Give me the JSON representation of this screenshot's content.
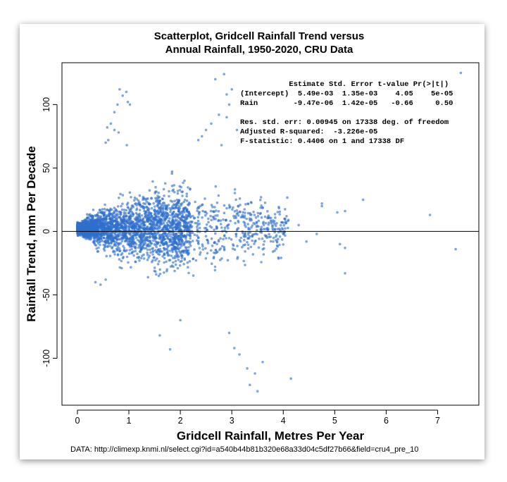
{
  "chart_data": {
    "type": "scatter",
    "title_lines": [
      "Scatterplot, Gridcell Rainfall Trend versus",
      "Annual Rainfall, 1950-2020, CRU Data"
    ],
    "xlabel": "Gridcell Rainfall, Metres Per Year",
    "ylabel": "Rainfall Trend, mm Per Decade",
    "xlim": [
      -0.3,
      7.8
    ],
    "ylim": [
      -137,
      133
    ],
    "x_ticks": [
      0,
      1,
      2,
      3,
      4,
      5,
      6,
      7
    ],
    "y_ticks": [
      -100,
      -50,
      0,
      50,
      100
    ],
    "reference_line_y": 0,
    "point_color": "#2f6fcc",
    "point_count": 17340,
    "grid": false,
    "stats_lines": [
      "           Estimate Std. Error t-value Pr(>|t|)",
      "(Intercept)  5.49e-03  1.35e-03    4.05    5e-05",
      "Rain        -9.47e-06  1.42e-05   -0.66     0.50",
      "",
      "Res. std. err: 0.00945 on 17338 deg. of freedom",
      "Adjusted R-squared:  -3.226e-05",
      "F-statistic: 0.4406 on 1 and 17338 DF"
    ],
    "source": "DATA: http://climexp.knmi.nl/select.cgi?id=a540b44b81b320e68a33d04c5df27b66&field=cru4_pre_10",
    "envelope": {
      "x": [
        0.05,
        0.3,
        0.6,
        0.9,
        1.2,
        1.6,
        2.0,
        2.5,
        3.0,
        3.5,
        4.0
      ],
      "spread": [
        5,
        14,
        22,
        28,
        32,
        36,
        38,
        37,
        34,
        30,
        25
      ]
    },
    "outliers": [
      {
        "x": 7.45,
        "y": 125
      },
      {
        "x": 7.35,
        "y": -14
      },
      {
        "x": 6.85,
        "y": 13
      },
      {
        "x": 5.55,
        "y": 25
      },
      {
        "x": 5.2,
        "y": 16
      },
      {
        "x": 5.05,
        "y": 15
      },
      {
        "x": 5.1,
        "y": -10
      },
      {
        "x": 5.2,
        "y": -13
      },
      {
        "x": 5.2,
        "y": -33
      },
      {
        "x": 4.75,
        "y": 22
      },
      {
        "x": 4.75,
        "y": 20
      },
      {
        "x": 4.65,
        "y": -2
      },
      {
        "x": 4.45,
        "y": -8
      },
      {
        "x": 4.3,
        "y": 5
      },
      {
        "x": 4.15,
        "y": -116
      },
      {
        "x": 4.1,
        "y": 9
      },
      {
        "x": 3.5,
        "y": -126
      },
      {
        "x": 3.45,
        "y": -112
      },
      {
        "x": 3.35,
        "y": -121
      },
      {
        "x": 3.6,
        "y": -103
      },
      {
        "x": 3.3,
        "y": -108
      },
      {
        "x": 3.15,
        "y": -97
      },
      {
        "x": 3.05,
        "y": -92
      },
      {
        "x": 2.95,
        "y": -80
      },
      {
        "x": 0.82,
        "y": 112
      },
      {
        "x": 0.88,
        "y": 107
      },
      {
        "x": 0.95,
        "y": 110
      },
      {
        "x": 0.98,
        "y": 102
      },
      {
        "x": 1.02,
        "y": 100
      },
      {
        "x": 0.78,
        "y": 100
      },
      {
        "x": 0.72,
        "y": 94
      },
      {
        "x": 0.65,
        "y": 85
      },
      {
        "x": 0.58,
        "y": 82
      },
      {
        "x": 0.6,
        "y": 72
      },
      {
        "x": 0.8,
        "y": 78
      },
      {
        "x": 0.72,
        "y": 80
      },
      {
        "x": 0.96,
        "y": 68
      },
      {
        "x": 0.55,
        "y": 70
      },
      {
        "x": 2.68,
        "y": 120
      },
      {
        "x": 2.85,
        "y": 124
      },
      {
        "x": 2.9,
        "y": 108
      },
      {
        "x": 2.95,
        "y": 100
      },
      {
        "x": 3.0,
        "y": 112
      },
      {
        "x": 2.75,
        "y": 92
      },
      {
        "x": 2.6,
        "y": 85
      },
      {
        "x": 2.5,
        "y": 80
      },
      {
        "x": 2.42,
        "y": 75
      },
      {
        "x": 2.35,
        "y": 72
      },
      {
        "x": 2.9,
        "y": 90
      },
      {
        "x": 2.8,
        "y": 68
      },
      {
        "x": 3.1,
        "y": 80
      },
      {
        "x": 1.6,
        "y": -82
      },
      {
        "x": 1.8,
        "y": -93
      },
      {
        "x": 2.0,
        "y": -70
      },
      {
        "x": 0.45,
        "y": -42
      },
      {
        "x": 0.35,
        "y": -40
      },
      {
        "x": 0.55,
        "y": -38
      }
    ]
  }
}
